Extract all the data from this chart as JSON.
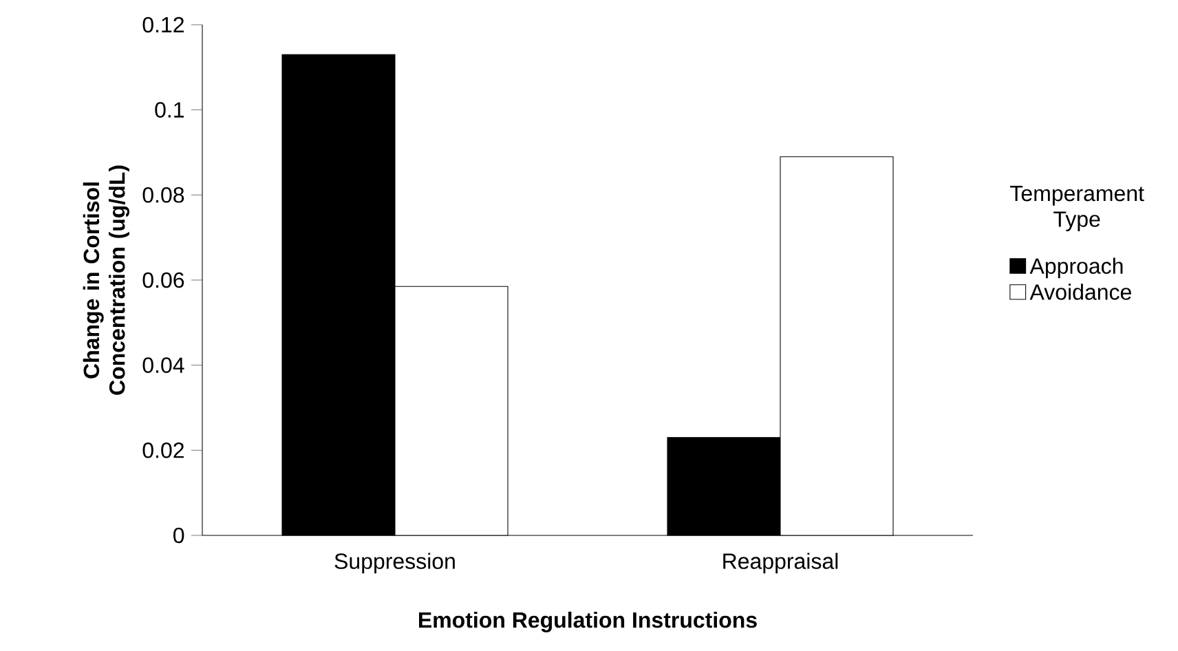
{
  "chart_data": {
    "type": "bar",
    "xlabel": "Emotion Regulation Instructions",
    "ylabel": "Change in Cortisol Concentration (ug/dL)",
    "legend_title": "Temperament Type",
    "categories": [
      "Suppression",
      "Reappraisal"
    ],
    "series": [
      {
        "name": "Approach",
        "color": "#000000",
        "values": [
          0.113,
          0.023
        ]
      },
      {
        "name": "Avoidance",
        "color": "#ffffff",
        "values": [
          0.0585,
          0.089
        ]
      }
    ],
    "ylim": [
      0,
      0.12
    ],
    "yticks": [
      0,
      0.02,
      0.04,
      0.06,
      0.08,
      0.1,
      0.12
    ],
    "grid": false,
    "legend": "right"
  }
}
